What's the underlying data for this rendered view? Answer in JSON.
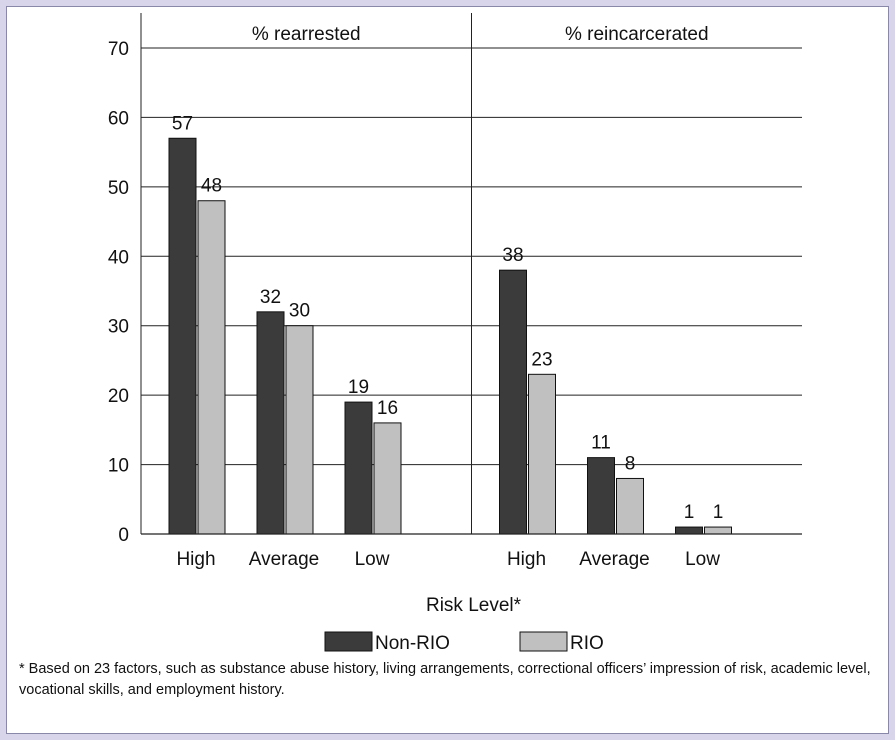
{
  "colors": {
    "non_rio": "#3b3b3b",
    "rio": "#c0c0c0",
    "frame_bg": "#d8d5ea"
  },
  "chart_data": {
    "type": "bar",
    "panels": [
      {
        "title": "% rearrested",
        "categories": [
          "High",
          "Average",
          "Low"
        ],
        "series": [
          {
            "name": "Non-RIO",
            "values": [
              57,
              32,
              19
            ]
          },
          {
            "name": "RIO",
            "values": [
              48,
              30,
              16
            ]
          }
        ]
      },
      {
        "title": "% reincarcerated",
        "categories": [
          "High",
          "Average",
          "Low"
        ],
        "series": [
          {
            "name": "Non-RIO",
            "values": [
              38,
              11,
              1
            ]
          },
          {
            "name": "RIO",
            "values": [
              23,
              8,
              1
            ]
          }
        ]
      }
    ],
    "xlabel": "Risk Level*",
    "ylim": [
      0,
      70
    ],
    "yticks": [
      0,
      10,
      20,
      30,
      40,
      50,
      60,
      70
    ],
    "grid": true,
    "legend": [
      "Non-RIO",
      "RIO"
    ],
    "legend_position": "bottom-center"
  },
  "footnote": "* Based on 23 factors, such as substance abuse history, living arrangements, correctional officers’ impression of risk, academic level, vocational skills, and employment history."
}
